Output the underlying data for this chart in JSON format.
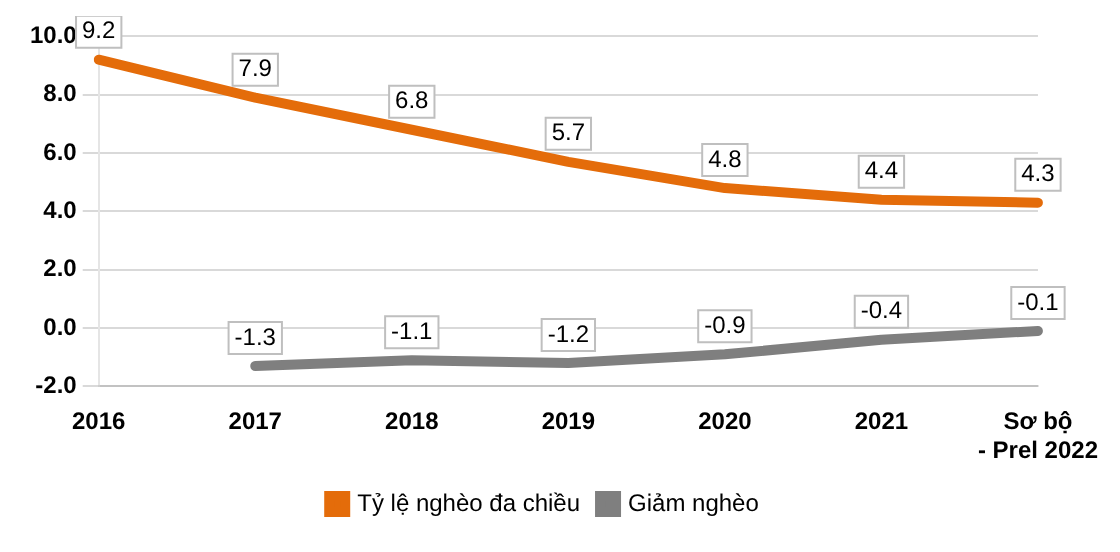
{
  "chart_data": {
    "type": "line",
    "categories": [
      "2016",
      "2017",
      "2018",
      "2019",
      "2020",
      "2021",
      "Sơ bộ - Prel 2022"
    ],
    "series": [
      {
        "name": "Tỷ lệ nghèo đa chiều",
        "color": "#e46c0a",
        "values": [
          9.2,
          7.9,
          6.8,
          5.7,
          4.8,
          4.4,
          4.3
        ]
      },
      {
        "name": "Giảm nghèo",
        "color": "#7f7f7f",
        "values": [
          null,
          -1.3,
          -1.1,
          -1.2,
          -0.9,
          -0.4,
          -0.1
        ]
      }
    ],
    "ylim": [
      -2,
      10
    ],
    "yticks": [
      {
        "value": -2,
        "label": "-2.0"
      },
      {
        "value": 0,
        "label": "0.0"
      },
      {
        "value": 2,
        "label": "2.0"
      },
      {
        "value": 4,
        "label": "4.0"
      },
      {
        "value": 6,
        "label": "6.0"
      },
      {
        "value": 8,
        "label": "8.0"
      },
      {
        "value": 10,
        "label": "10.0"
      }
    ],
    "grid": "y",
    "legend": "bottom",
    "data_labels": true,
    "marker": "none",
    "line_style": "solid"
  }
}
